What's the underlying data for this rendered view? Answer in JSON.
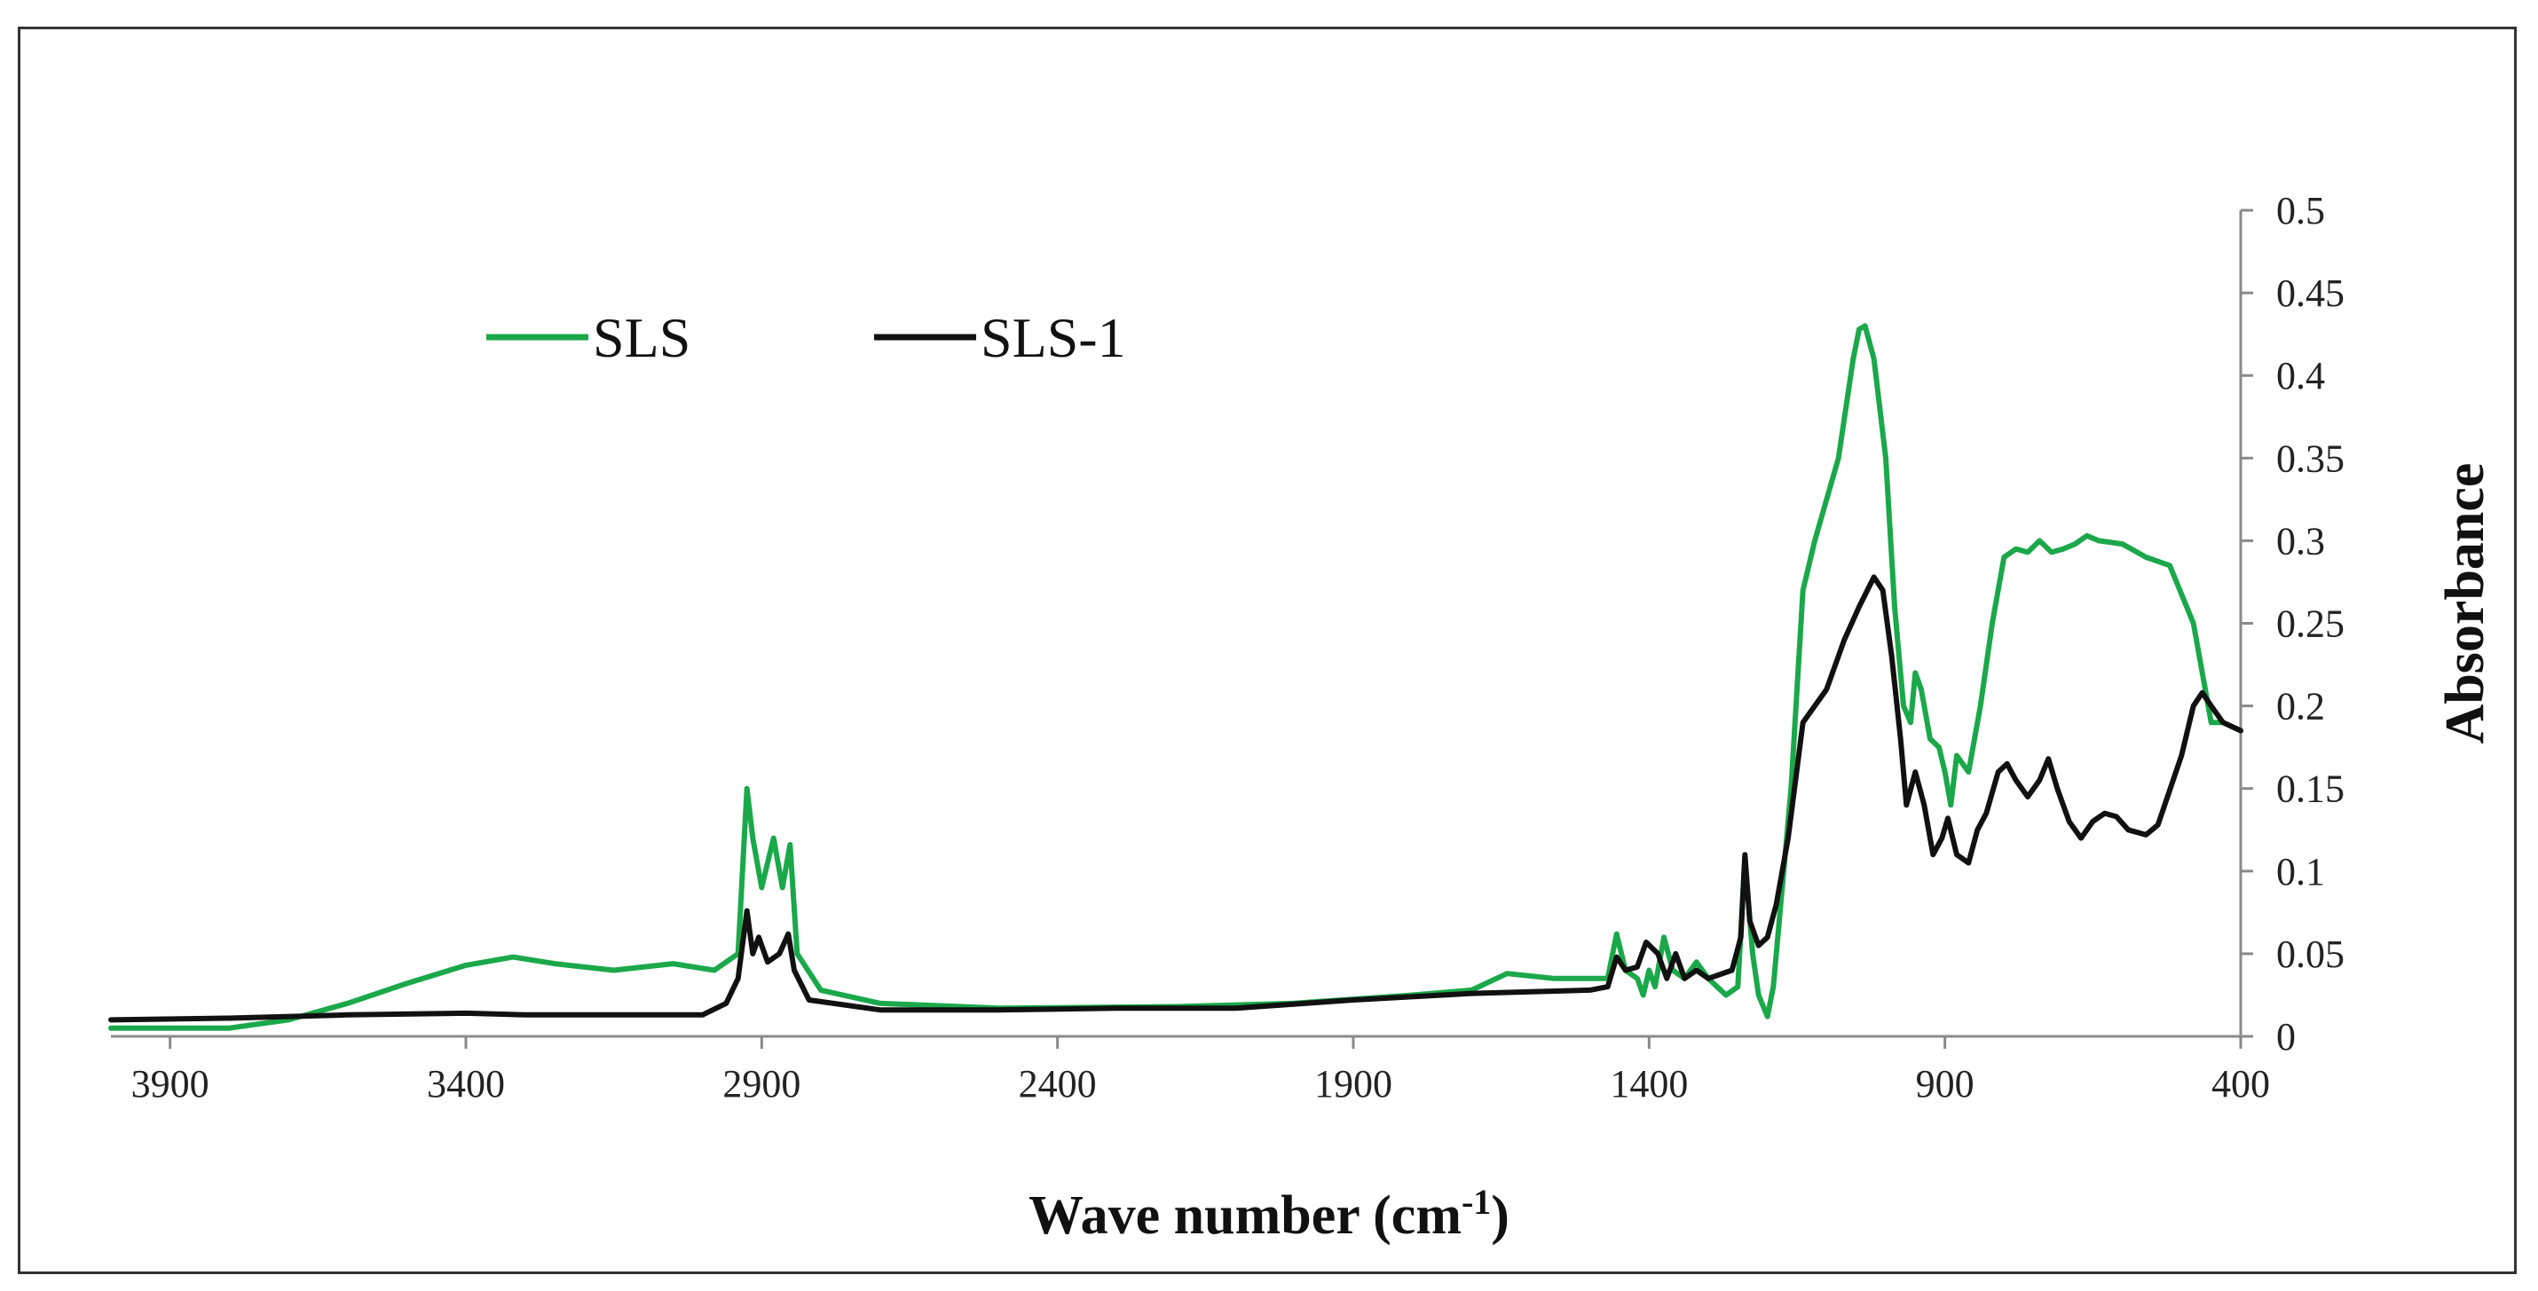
{
  "chart_data": {
    "type": "line",
    "title": "",
    "xlabel": "Wave number (cm",
    "xlabel_superscript": "-1",
    "xlabel_close": ")",
    "ylabel": "Absorbance",
    "xlim": [
      4000,
      400
    ],
    "ylim": [
      0,
      0.5
    ],
    "x_reversed": true,
    "grid": false,
    "legend_position": "top-left",
    "x_ticks": [
      {
        "value": 3900,
        "label": "3900"
      },
      {
        "value": 3400,
        "label": "3400"
      },
      {
        "value": 2900,
        "label": "2900"
      },
      {
        "value": 2400,
        "label": "2400"
      },
      {
        "value": 1900,
        "label": "1900"
      },
      {
        "value": 1400,
        "label": "1400"
      },
      {
        "value": 900,
        "label": "900"
      },
      {
        "value": 400,
        "label": "400"
      }
    ],
    "y_ticks": [
      {
        "value": 0,
        "label": "0"
      },
      {
        "value": 0.05,
        "label": "0.05"
      },
      {
        "value": 0.1,
        "label": "0.1"
      },
      {
        "value": 0.15,
        "label": "0.15"
      },
      {
        "value": 0.2,
        "label": "0.2"
      },
      {
        "value": 0.25,
        "label": "0.25"
      },
      {
        "value": 0.3,
        "label": "0.3"
      },
      {
        "value": 0.35,
        "label": "0.35"
      },
      {
        "value": 0.4,
        "label": "0.4"
      },
      {
        "value": 0.45,
        "label": "0.45"
      },
      {
        "value": 0.5,
        "label": "0.5"
      }
    ],
    "series": [
      {
        "name": "SLS",
        "color": "#1aa84a",
        "points": [
          [
            4000,
            0.005
          ],
          [
            3800,
            0.005
          ],
          [
            3700,
            0.01
          ],
          [
            3600,
            0.02
          ],
          [
            3500,
            0.032
          ],
          [
            3400,
            0.043
          ],
          [
            3320,
            0.048
          ],
          [
            3250,
            0.044
          ],
          [
            3150,
            0.04
          ],
          [
            3050,
            0.044
          ],
          [
            2980,
            0.04
          ],
          [
            2940,
            0.05
          ],
          [
            2925,
            0.15
          ],
          [
            2915,
            0.12
          ],
          [
            2900,
            0.09
          ],
          [
            2880,
            0.12
          ],
          [
            2865,
            0.09
          ],
          [
            2855,
            0.11
          ],
          [
            2852,
            0.116
          ],
          [
            2840,
            0.05
          ],
          [
            2800,
            0.028
          ],
          [
            2700,
            0.02
          ],
          [
            2500,
            0.017
          ],
          [
            2200,
            0.018
          ],
          [
            2000,
            0.02
          ],
          [
            1800,
            0.025
          ],
          [
            1700,
            0.028
          ],
          [
            1640,
            0.038
          ],
          [
            1560,
            0.035
          ],
          [
            1470,
            0.035
          ],
          [
            1455,
            0.062
          ],
          [
            1440,
            0.04
          ],
          [
            1420,
            0.035
          ],
          [
            1410,
            0.025
          ],
          [
            1400,
            0.04
          ],
          [
            1390,
            0.03
          ],
          [
            1375,
            0.06
          ],
          [
            1360,
            0.04
          ],
          [
            1340,
            0.035
          ],
          [
            1320,
            0.045
          ],
          [
            1300,
            0.035
          ],
          [
            1270,
            0.025
          ],
          [
            1250,
            0.03
          ],
          [
            1238,
            0.108
          ],
          [
            1225,
            0.05
          ],
          [
            1215,
            0.025
          ],
          [
            1200,
            0.012
          ],
          [
            1190,
            0.03
          ],
          [
            1180,
            0.07
          ],
          [
            1160,
            0.15
          ],
          [
            1140,
            0.27
          ],
          [
            1120,
            0.3
          ],
          [
            1080,
            0.35
          ],
          [
            1055,
            0.41
          ],
          [
            1045,
            0.428
          ],
          [
            1035,
            0.43
          ],
          [
            1020,
            0.41
          ],
          [
            1000,
            0.35
          ],
          [
            985,
            0.26
          ],
          [
            970,
            0.2
          ],
          [
            958,
            0.19
          ],
          [
            950,
            0.22
          ],
          [
            940,
            0.21
          ],
          [
            925,
            0.18
          ],
          [
            910,
            0.175
          ],
          [
            900,
            0.16
          ],
          [
            890,
            0.14
          ],
          [
            880,
            0.17
          ],
          [
            860,
            0.16
          ],
          [
            840,
            0.2
          ],
          [
            820,
            0.25
          ],
          [
            800,
            0.29
          ],
          [
            780,
            0.295
          ],
          [
            760,
            0.293
          ],
          [
            740,
            0.3
          ],
          [
            720,
            0.293
          ],
          [
            700,
            0.295
          ],
          [
            680,
            0.298
          ],
          [
            660,
            0.303
          ],
          [
            640,
            0.3
          ],
          [
            600,
            0.298
          ],
          [
            560,
            0.29
          ],
          [
            520,
            0.285
          ],
          [
            480,
            0.25
          ],
          [
            450,
            0.19
          ],
          [
            430,
            0.19
          ],
          [
            400,
            0.185
          ]
        ]
      },
      {
        "name": "SLS-1",
        "color": "#111111",
        "points": [
          [
            4000,
            0.01
          ],
          [
            3800,
            0.011
          ],
          [
            3600,
            0.013
          ],
          [
            3400,
            0.014
          ],
          [
            3300,
            0.013
          ],
          [
            3000,
            0.013
          ],
          [
            2960,
            0.02
          ],
          [
            2940,
            0.035
          ],
          [
            2925,
            0.076
          ],
          [
            2915,
            0.05
          ],
          [
            2905,
            0.06
          ],
          [
            2890,
            0.045
          ],
          [
            2870,
            0.05
          ],
          [
            2855,
            0.062
          ],
          [
            2845,
            0.04
          ],
          [
            2820,
            0.022
          ],
          [
            2700,
            0.016
          ],
          [
            2500,
            0.016
          ],
          [
            2300,
            0.017
          ],
          [
            2100,
            0.017
          ],
          [
            1900,
            0.022
          ],
          [
            1700,
            0.026
          ],
          [
            1500,
            0.028
          ],
          [
            1470,
            0.03
          ],
          [
            1455,
            0.048
          ],
          [
            1440,
            0.04
          ],
          [
            1420,
            0.042
          ],
          [
            1405,
            0.057
          ],
          [
            1385,
            0.05
          ],
          [
            1370,
            0.035
          ],
          [
            1355,
            0.05
          ],
          [
            1340,
            0.035
          ],
          [
            1320,
            0.04
          ],
          [
            1300,
            0.035
          ],
          [
            1260,
            0.04
          ],
          [
            1245,
            0.06
          ],
          [
            1238,
            0.11
          ],
          [
            1230,
            0.07
          ],
          [
            1215,
            0.055
          ],
          [
            1200,
            0.06
          ],
          [
            1185,
            0.08
          ],
          [
            1165,
            0.12
          ],
          [
            1140,
            0.19
          ],
          [
            1100,
            0.21
          ],
          [
            1070,
            0.24
          ],
          [
            1045,
            0.26
          ],
          [
            1020,
            0.278
          ],
          [
            1005,
            0.27
          ],
          [
            990,
            0.23
          ],
          [
            975,
            0.18
          ],
          [
            965,
            0.14
          ],
          [
            950,
            0.16
          ],
          [
            935,
            0.14
          ],
          [
            920,
            0.11
          ],
          [
            905,
            0.12
          ],
          [
            895,
            0.132
          ],
          [
            880,
            0.11
          ],
          [
            860,
            0.105
          ],
          [
            845,
            0.125
          ],
          [
            830,
            0.135
          ],
          [
            810,
            0.16
          ],
          [
            795,
            0.165
          ],
          [
            780,
            0.155
          ],
          [
            760,
            0.145
          ],
          [
            740,
            0.155
          ],
          [
            725,
            0.168
          ],
          [
            710,
            0.15
          ],
          [
            690,
            0.13
          ],
          [
            670,
            0.12
          ],
          [
            650,
            0.13
          ],
          [
            630,
            0.135
          ],
          [
            610,
            0.133
          ],
          [
            590,
            0.125
          ],
          [
            560,
            0.122
          ],
          [
            540,
            0.128
          ],
          [
            500,
            0.17
          ],
          [
            480,
            0.2
          ],
          [
            465,
            0.208
          ],
          [
            450,
            0.2
          ],
          [
            430,
            0.19
          ],
          [
            400,
            0.185
          ]
        ]
      }
    ]
  }
}
